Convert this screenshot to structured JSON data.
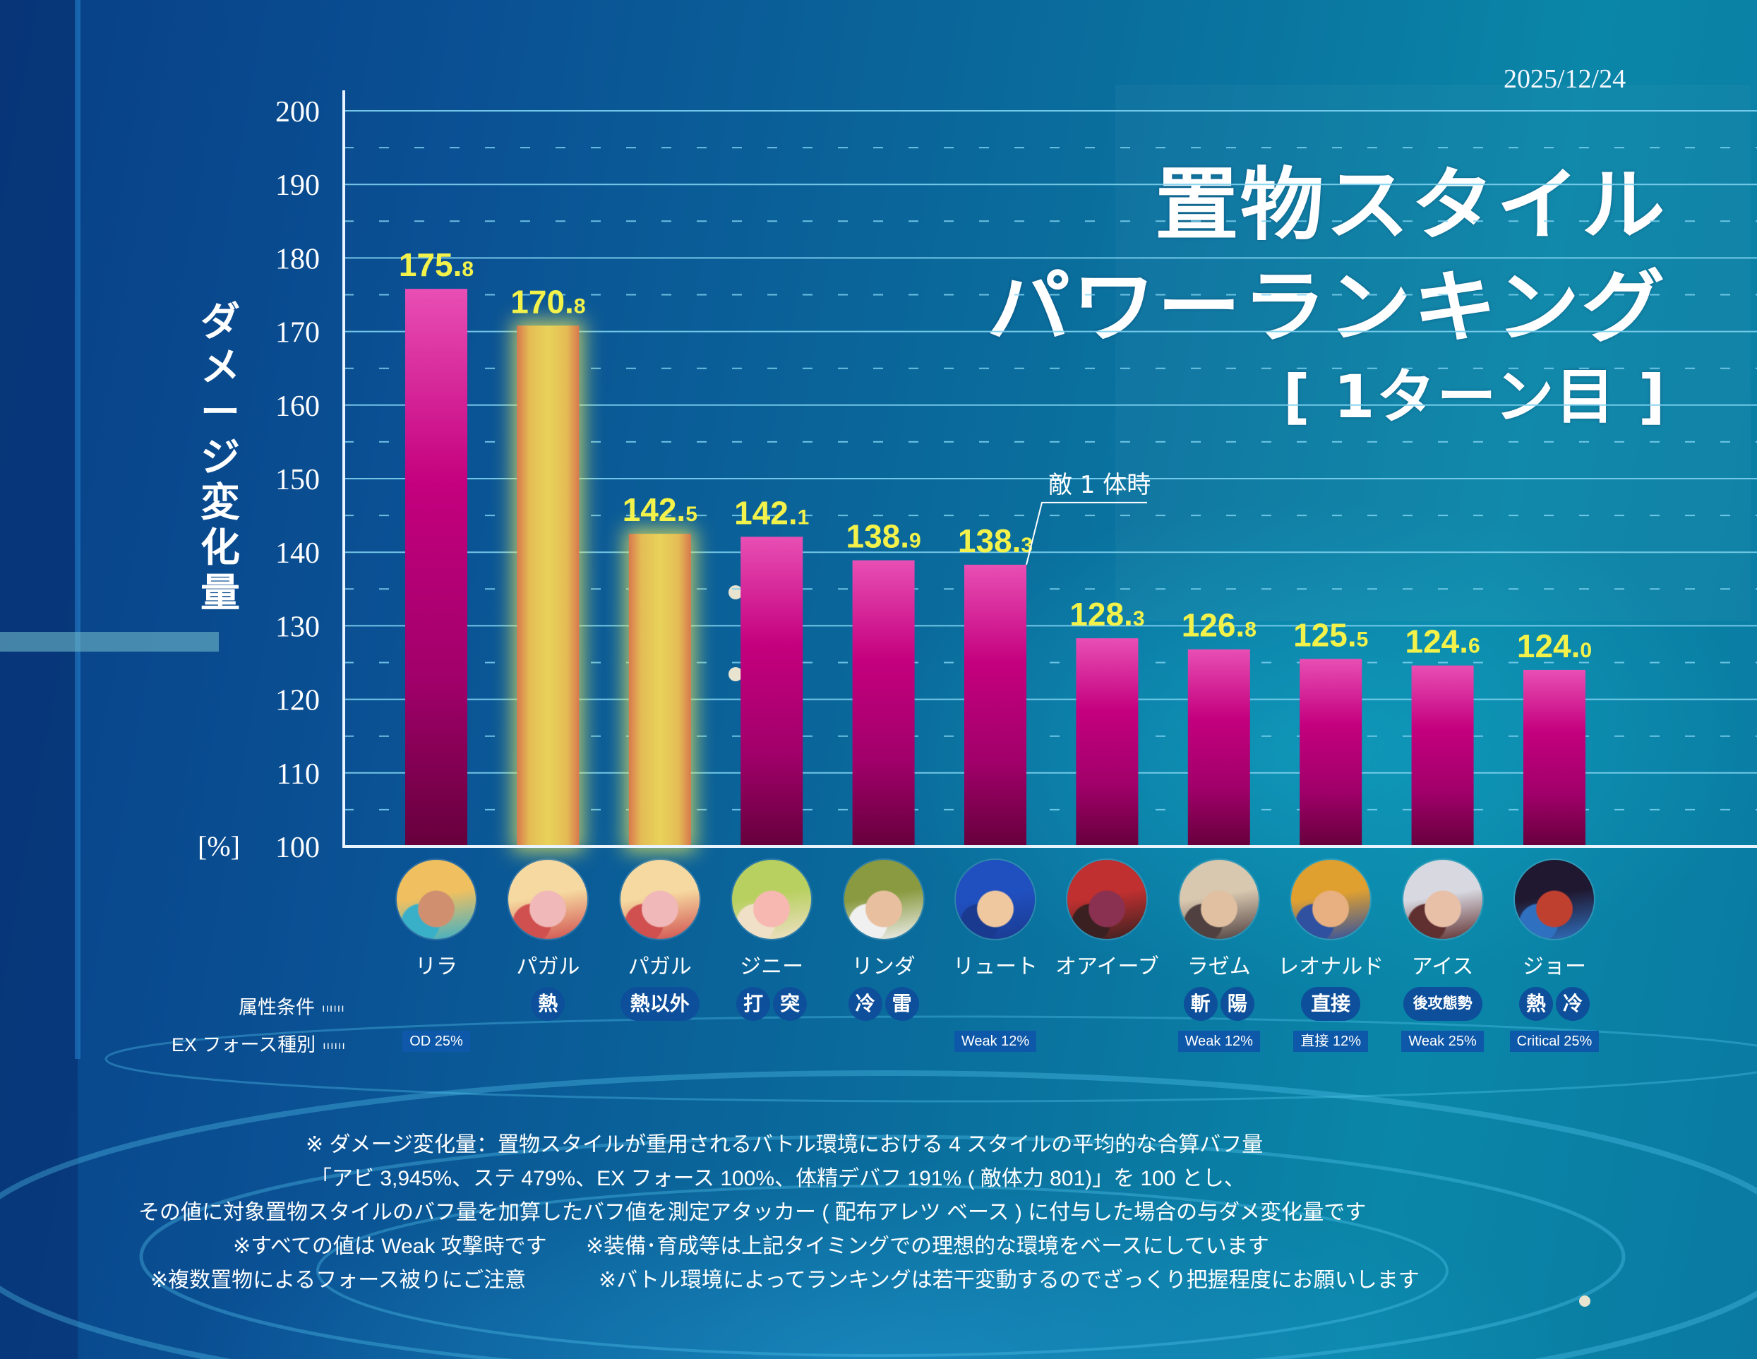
{
  "header": {
    "date": "2025/12/24",
    "title_line1": "置物スタイル",
    "title_line2": "パワーランキング",
    "title_line3": "[ 1ターン目 ]"
  },
  "chart_data": {
    "type": "bar",
    "title": "置物スタイル パワーランキング [1ターン目]",
    "ylabel": "ダメージ変化量",
    "yunit": "[%]",
    "xlabel": "",
    "ylim": [
      100,
      200
    ],
    "yticks": [
      100,
      110,
      120,
      130,
      140,
      150,
      160,
      170,
      180,
      190,
      200
    ],
    "grid": "horizontal (solid every 10, dashed every 5)",
    "categories": [
      "リラ",
      "パガル",
      "パガル",
      "ジニー",
      "リンダ",
      "リュート",
      "オアイーブ",
      "ラゼム",
      "レオナルド",
      "アイス",
      "ジョー"
    ],
    "values": [
      175.8,
      170.8,
      142.5,
      142.1,
      138.9,
      138.3,
      128.3,
      126.8,
      125.5,
      124.6,
      124.0
    ],
    "highlighted": [
      false,
      true,
      true,
      false,
      false,
      false,
      false,
      false,
      false,
      false,
      false
    ],
    "annotations": [
      {
        "category_index": 5,
        "text": "敵 1 体時"
      }
    ],
    "colors": {
      "bar": "#e24fb4",
      "bar_bottom": "#6d0040",
      "highlight": "#e6cf57",
      "highlight_glow": "#f2ef5a",
      "value_label": "#f3f24a"
    }
  },
  "characters": [
    {
      "name": "リラ",
      "attr": [],
      "ex": "OD 25%",
      "avatar_colors": [
        "#f0c060",
        "#d09070",
        "#3ab0c8"
      ]
    },
    {
      "name": "パガル",
      "attr": [
        "熱"
      ],
      "ex": "",
      "avatar_colors": [
        "#f6d9a0",
        "#f0b8b8",
        "#d05050"
      ]
    },
    {
      "name": "パガル",
      "attr": [
        "熱以外"
      ],
      "ex": "",
      "avatar_colors": [
        "#f6d9a0",
        "#f0b8b8",
        "#d05050"
      ]
    },
    {
      "name": "ジニー",
      "attr": [
        "打",
        "突"
      ],
      "ex": "",
      "avatar_colors": [
        "#b8d060",
        "#f6b8b0",
        "#f0e0c8"
      ]
    },
    {
      "name": "リンダ",
      "attr": [
        "冷",
        "雷"
      ],
      "ex": "",
      "avatar_colors": [
        "#8a9a40",
        "#e8c0a0",
        "#f0f0f0"
      ]
    },
    {
      "name": "リュート",
      "attr": [],
      "ex": "Weak 12%",
      "avatar_colors": [
        "#2050c0",
        "#f0c8a0",
        "#1a3a90"
      ]
    },
    {
      "name": "オアイーブ",
      "attr": [],
      "ex": "",
      "avatar_colors": [
        "#c03030",
        "#8a3050",
        "#3a2020"
      ]
    },
    {
      "name": "ラゼム",
      "attr": [
        "斬",
        "陽"
      ],
      "ex": "Weak 12%",
      "avatar_colors": [
        "#d8c8b0",
        "#e0c0a0",
        "#504040"
      ]
    },
    {
      "name": "レオナルド",
      "attr": [
        "直接"
      ],
      "ex": "直接 12%",
      "avatar_colors": [
        "#e0a030",
        "#e8b080",
        "#3050a0"
      ]
    },
    {
      "name": "アイス",
      "attr": [
        "後攻態勢"
      ],
      "ex": "Weak 25%",
      "avatar_colors": [
        "#d8d8e0",
        "#e8c0a8",
        "#603030"
      ]
    },
    {
      "name": "ジョー",
      "attr": [
        "熱",
        "冷"
      ],
      "ex": "Critical 25%",
      "avatar_colors": [
        "#201830",
        "#c04030",
        "#3070c0"
      ]
    }
  ],
  "rows": {
    "attr_label": "属性条件",
    "ex_label": "EX フォース種別",
    "dots": "ıııııı"
  },
  "notes": [
    "※ ダメージ変化量：置物スタイルが重用されるバトル環境における 4 スタイルの平均的な合算バフ量",
    "「アビ 3,945%、ステ 479%、EX フォース 100%、体精デバフ 191% ( 敵体力 801)」を 100 とし、",
    "その値に対象置物スタイルのバフ量を加算したバフ値を測定アタッカー ( 配布アレツ ベース ) に付与した場合の与ダメ変化量です",
    "※すべての値は Weak 攻撃時です",
    "※装備･育成等は上記タイミングでの理想的な環境をベースにしています",
    "※複数置物によるフォース被りにご注意",
    "※バトル環境によってランキングは若干変動するのでざっくり把握程度にお願いします"
  ]
}
